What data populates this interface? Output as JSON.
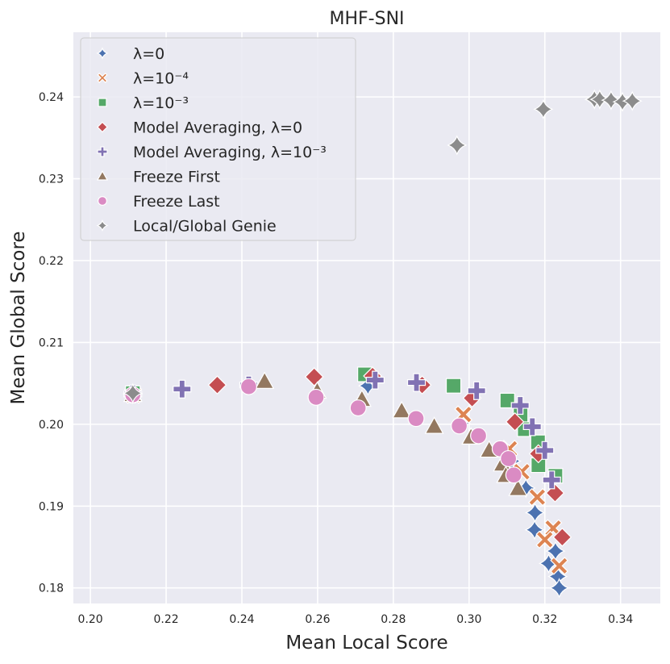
{
  "chart_data": {
    "type": "scatter",
    "title": "MHF-SNI",
    "xlabel": "Mean Local Score",
    "ylabel": "Mean Global Score",
    "xlim": [
      0.1955,
      0.3505
    ],
    "ylim": [
      0.1781,
      0.2479
    ],
    "xticks": [
      0.2,
      0.22,
      0.24,
      0.26,
      0.28,
      0.3,
      0.32,
      0.34
    ],
    "xtick_labels": [
      "0.20",
      "0.22",
      "0.24",
      "0.26",
      "0.28",
      "0.30",
      "0.32",
      "0.34"
    ],
    "yticks": [
      0.18,
      0.19,
      0.2,
      0.21,
      0.22,
      0.23,
      0.24
    ],
    "ytick_labels": [
      "0.18",
      "0.19",
      "0.20",
      "0.21",
      "0.22",
      "0.23",
      "0.24"
    ],
    "grid": true,
    "legend_position": "upper-left",
    "series": [
      {
        "name": "λ = 0",
        "legend_label": "λ=0",
        "marker": "star4",
        "color": "#4c72b0",
        "points": [
          [
            0.2112,
            0.2037
          ],
          [
            0.2733,
            0.2047
          ],
          [
            0.2978,
            0.2001
          ],
          [
            0.3112,
            0.1955
          ],
          [
            0.315,
            0.1922
          ],
          [
            0.3174,
            0.1892
          ],
          [
            0.3173,
            0.1871
          ],
          [
            0.321,
            0.183
          ],
          [
            0.3228,
            0.1845
          ],
          [
            0.3234,
            0.1814
          ],
          [
            0.3238,
            0.18
          ]
        ]
      },
      {
        "name": "λ = 10^-4",
        "legend_label": "λ=10⁻⁴",
        "marker": "x",
        "color": "#dd8452",
        "points": [
          [
            0.2113,
            0.2036
          ],
          [
            0.2985,
            0.2012
          ],
          [
            0.3106,
            0.197
          ],
          [
            0.3139,
            0.1942
          ],
          [
            0.318,
            0.1911
          ],
          [
            0.3222,
            0.1873
          ],
          [
            0.32,
            0.1859
          ],
          [
            0.3238,
            0.1827
          ]
        ]
      },
      {
        "name": "λ = 10^-3",
        "legend_label": "λ=10⁻³",
        "marker": "square",
        "color": "#55a868",
        "points": [
          [
            0.2112,
            0.2038
          ],
          [
            0.2725,
            0.2061
          ],
          [
            0.2959,
            0.2047
          ],
          [
            0.3101,
            0.2029
          ],
          [
            0.3136,
            0.2011
          ],
          [
            0.3147,
            0.1994
          ],
          [
            0.3182,
            0.1978
          ],
          [
            0.3183,
            0.195
          ],
          [
            0.3228,
            0.1937
          ]
        ]
      },
      {
        "name": "Model Averaging, λ = 0",
        "legend_label": "Model Averaging, λ=0",
        "marker": "diamond",
        "color": "#c44e52",
        "points": [
          [
            0.2112,
            0.2037
          ],
          [
            0.2335,
            0.2048
          ],
          [
            0.2591,
            0.2058
          ],
          [
            0.2745,
            0.2059
          ],
          [
            0.2876,
            0.2048
          ],
          [
            0.3008,
            0.2032
          ],
          [
            0.3121,
            0.2003
          ],
          [
            0.3183,
            0.1964
          ],
          [
            0.3227,
            0.1916
          ],
          [
            0.3246,
            0.1862
          ]
        ]
      },
      {
        "name": "Model Averaging, λ = 10^-3",
        "legend_label": "Model Averaging, λ=10⁻³",
        "marker": "plus",
        "color": "#8172b3",
        "points": [
          [
            0.2112,
            0.2037
          ],
          [
            0.2242,
            0.2043
          ],
          [
            0.2418,
            0.2048
          ],
          [
            0.2752,
            0.2054
          ],
          [
            0.2861,
            0.2051
          ],
          [
            0.302,
            0.2041
          ],
          [
            0.3135,
            0.2023
          ],
          [
            0.3167,
            0.1997
          ],
          [
            0.32,
            0.1968
          ],
          [
            0.3218,
            0.1932
          ]
        ]
      },
      {
        "name": "Freeze First",
        "legend_label": "Freeze First",
        "marker": "triangle",
        "color": "#937860",
        "points": [
          [
            0.2112,
            0.2036
          ],
          [
            0.246,
            0.2052
          ],
          [
            0.2599,
            0.204
          ],
          [
            0.2717,
            0.203
          ],
          [
            0.2822,
            0.2016
          ],
          [
            0.2908,
            0.1997
          ],
          [
            0.3005,
            0.1984
          ],
          [
            0.3053,
            0.1968
          ],
          [
            0.3088,
            0.1951
          ],
          [
            0.3097,
            0.1937
          ],
          [
            0.3129,
            0.1921
          ]
        ]
      },
      {
        "name": "Freeze Last",
        "legend_label": "Freeze Last",
        "marker": "circle",
        "color": "#da8bc3",
        "points": [
          [
            0.2112,
            0.2036
          ],
          [
            0.2418,
            0.2046
          ],
          [
            0.2596,
            0.2033
          ],
          [
            0.2707,
            0.202
          ],
          [
            0.286,
            0.2007
          ],
          [
            0.2974,
            0.1998
          ],
          [
            0.3025,
            0.1986
          ],
          [
            0.3082,
            0.197
          ],
          [
            0.3104,
            0.1958
          ],
          [
            0.3118,
            0.1938
          ]
        ]
      },
      {
        "name": "Local/Global Genie",
        "legend_label": "Local/Global Genie",
        "marker": "star4",
        "color": "#8c8c8c",
        "points": [
          [
            0.2112,
            0.2038
          ],
          [
            0.2968,
            0.2341
          ],
          [
            0.3196,
            0.2385
          ],
          [
            0.3331,
            0.2397
          ],
          [
            0.3345,
            0.2397
          ],
          [
            0.3375,
            0.2396
          ],
          [
            0.3405,
            0.2394
          ],
          [
            0.3431,
            0.2395
          ]
        ]
      }
    ]
  }
}
